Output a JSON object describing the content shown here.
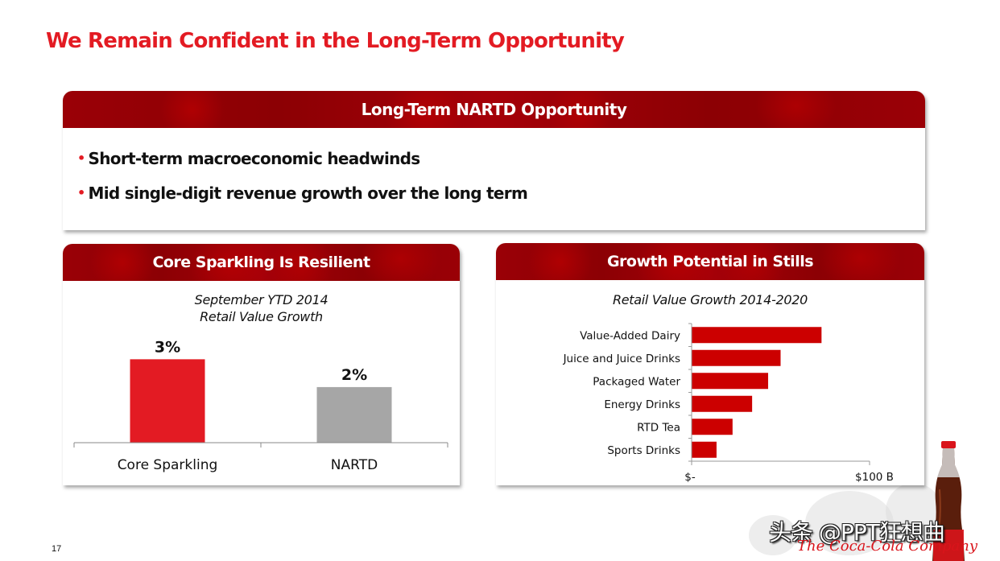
{
  "slide": {
    "title": "We Remain Confident in the Long-Term Opportunity",
    "page_number": "17"
  },
  "top_panel": {
    "header": "Long-Term NARTD Opportunity",
    "bullet_glyph": "•",
    "bullets": [
      "Short-term macroeconomic headwinds",
      "Mid single-digit revenue growth over the long term"
    ]
  },
  "left_panel": {
    "header": "Core Sparkling Is Resilient",
    "subtitle_line1": "September YTD 2014",
    "subtitle_line2": "Retail Value Growth"
  },
  "right_panel": {
    "header": "Growth Potential in Stills",
    "subtitle": "Retail Value Growth 2014-2020"
  },
  "colors": {
    "brand_red": "#e31b23",
    "bar_red": "#cc0000",
    "bar_gray": "#a6a6a6"
  },
  "branding": {
    "watermark": "头条 @PPT狂想曲",
    "company": "The Coca-Cola Company"
  },
  "chart_data": [
    {
      "type": "bar",
      "title": "September YTD 2014 Retail Value Growth",
      "categories": [
        "Core Sparkling",
        "NARTD"
      ],
      "values": [
        3,
        2
      ],
      "data_labels": [
        "3%",
        "2%"
      ],
      "colors": [
        "#e31b23",
        "#a6a6a6"
      ],
      "xlabel": "",
      "ylabel": "",
      "ylim": [
        0,
        3.3
      ],
      "unit": "%",
      "grid": false,
      "legend": "none"
    },
    {
      "type": "bar",
      "orientation": "horizontal",
      "title": "Retail Value Growth 2014-2020",
      "categories": [
        "Value-Added Dairy",
        "Juice and Juice Drinks",
        "Packaged Water",
        "Energy Drinks",
        "RTD Tea",
        "Sports Drinks"
      ],
      "values": [
        73,
        50,
        43,
        34,
        23,
        14
      ],
      "unit": "$B",
      "xlim": [
        0,
        100
      ],
      "x_tick_labels": [
        "$-",
        "$100 B"
      ],
      "color": "#cc0000",
      "grid": false,
      "legend": "none"
    }
  ]
}
